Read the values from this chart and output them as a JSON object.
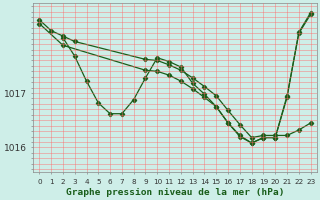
{
  "title": "Graphe pression niveau de la mer (hPa)",
  "background_color": "#ceeee8",
  "line_color": "#1a5e1a",
  "xlim": [
    -0.5,
    23.5
  ],
  "ylim": [
    1015.55,
    1018.65
  ],
  "yticks": [
    1016,
    1017
  ],
  "xticks": [
    0,
    1,
    2,
    3,
    4,
    5,
    6,
    7,
    8,
    9,
    10,
    11,
    12,
    13,
    14,
    15,
    16,
    17,
    18,
    19,
    20,
    21,
    22,
    23
  ],
  "series_a_x": [
    0,
    1,
    2,
    3,
    9,
    10,
    11,
    12,
    13,
    14,
    15,
    16,
    17,
    18,
    19,
    20,
    21,
    22,
    23
  ],
  "series_a_y": [
    1018.35,
    1018.15,
    1018.05,
    1017.95,
    1017.62,
    1017.6,
    1017.52,
    1017.42,
    1017.28,
    1017.12,
    1016.95,
    1016.68,
    1016.42,
    1016.18,
    1016.22,
    1016.22,
    1016.22,
    1016.32,
    1016.45
  ],
  "series_b_x": [
    0,
    2,
    9,
    10,
    11,
    12,
    13,
    14,
    15,
    16,
    17,
    18,
    19,
    20,
    21,
    22,
    23
  ],
  "series_b_y": [
    1018.28,
    1017.88,
    1017.42,
    1017.4,
    1017.33,
    1017.22,
    1017.08,
    1016.92,
    1016.75,
    1016.45,
    1016.2,
    1016.08,
    1016.18,
    1016.18,
    1016.92,
    1018.12,
    1018.48
  ],
  "series_c_x": [
    2,
    3,
    4,
    5,
    6,
    7,
    8,
    9,
    10,
    11,
    12,
    13,
    14,
    15,
    16,
    17,
    18,
    19,
    20,
    21,
    22,
    23
  ],
  "series_c_y": [
    1018.02,
    1017.68,
    1017.22,
    1016.82,
    1016.62,
    1016.62,
    1016.88,
    1017.28,
    1017.65,
    1017.58,
    1017.48,
    1017.18,
    1016.98,
    1016.75,
    1016.45,
    1016.22,
    1016.08,
    1016.18,
    1016.18,
    1016.95,
    1018.1,
    1018.45
  ]
}
